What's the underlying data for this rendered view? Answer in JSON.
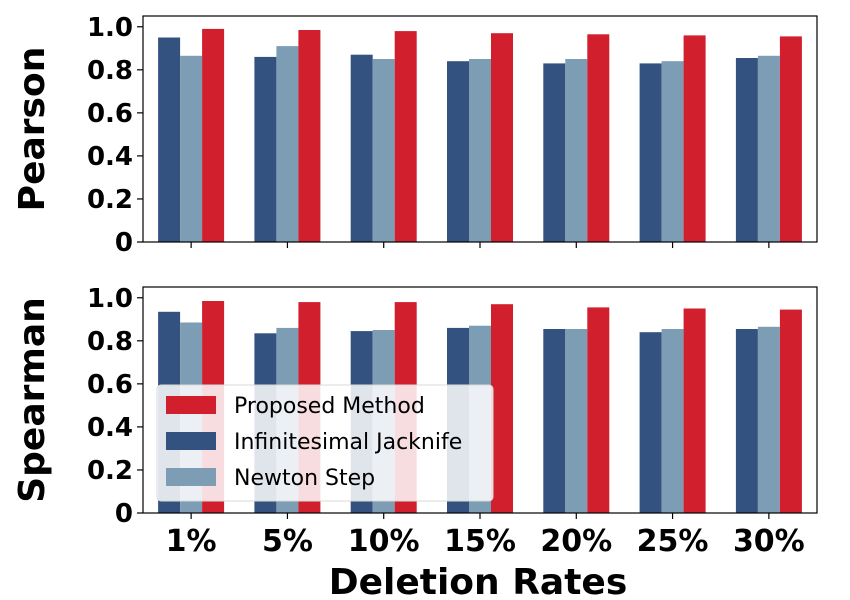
{
  "chart_data": [
    {
      "type": "bar",
      "ylabel": "Pearson",
      "ylim": [
        0,
        1.05
      ],
      "yticks": [
        "0",
        "0.2",
        "0.4",
        "0.6",
        "0.8",
        "1.0"
      ],
      "categories": [
        "1%",
        "5%",
        "10%",
        "15%",
        "20%",
        "25%",
        "30%"
      ],
      "series": [
        {
          "name": "Infinitesimal Jacknife",
          "color": "#34527f",
          "values": [
            0.95,
            0.86,
            0.87,
            0.84,
            0.83,
            0.83,
            0.855
          ]
        },
        {
          "name": "Newton Step",
          "color": "#7d9db4",
          "values": [
            0.865,
            0.91,
            0.85,
            0.85,
            0.85,
            0.84,
            0.865
          ]
        },
        {
          "name": "Proposed Method",
          "color": "#d21f2e",
          "values": [
            0.99,
            0.985,
            0.98,
            0.97,
            0.965,
            0.96,
            0.955
          ]
        }
      ]
    },
    {
      "type": "bar",
      "ylabel": "Spearman",
      "xlabel": "Deletion Rates",
      "ylim": [
        0,
        1.05
      ],
      "yticks": [
        "0",
        "0.2",
        "0.4",
        "0.6",
        "0.8",
        "1.0"
      ],
      "categories": [
        "1%",
        "5%",
        "10%",
        "15%",
        "20%",
        "25%",
        "30%"
      ],
      "series": [
        {
          "name": "Infinitesimal Jacknife",
          "color": "#34527f",
          "values": [
            0.935,
            0.835,
            0.845,
            0.86,
            0.855,
            0.84,
            0.855
          ]
        },
        {
          "name": "Newton Step",
          "color": "#7d9db4",
          "values": [
            0.885,
            0.86,
            0.85,
            0.87,
            0.855,
            0.855,
            0.865
          ]
        },
        {
          "name": "Proposed Method",
          "color": "#d21f2e",
          "values": [
            0.985,
            0.98,
            0.98,
            0.97,
            0.955,
            0.95,
            0.945
          ]
        }
      ],
      "legend": {
        "placement": "lower-left",
        "entries": [
          {
            "label": "Proposed Method",
            "color": "#d21f2e"
          },
          {
            "label": "Infinitesimal Jacknife",
            "color": "#34527f"
          },
          {
            "label": "Newton Step",
            "color": "#7d9db4"
          }
        ]
      }
    }
  ]
}
